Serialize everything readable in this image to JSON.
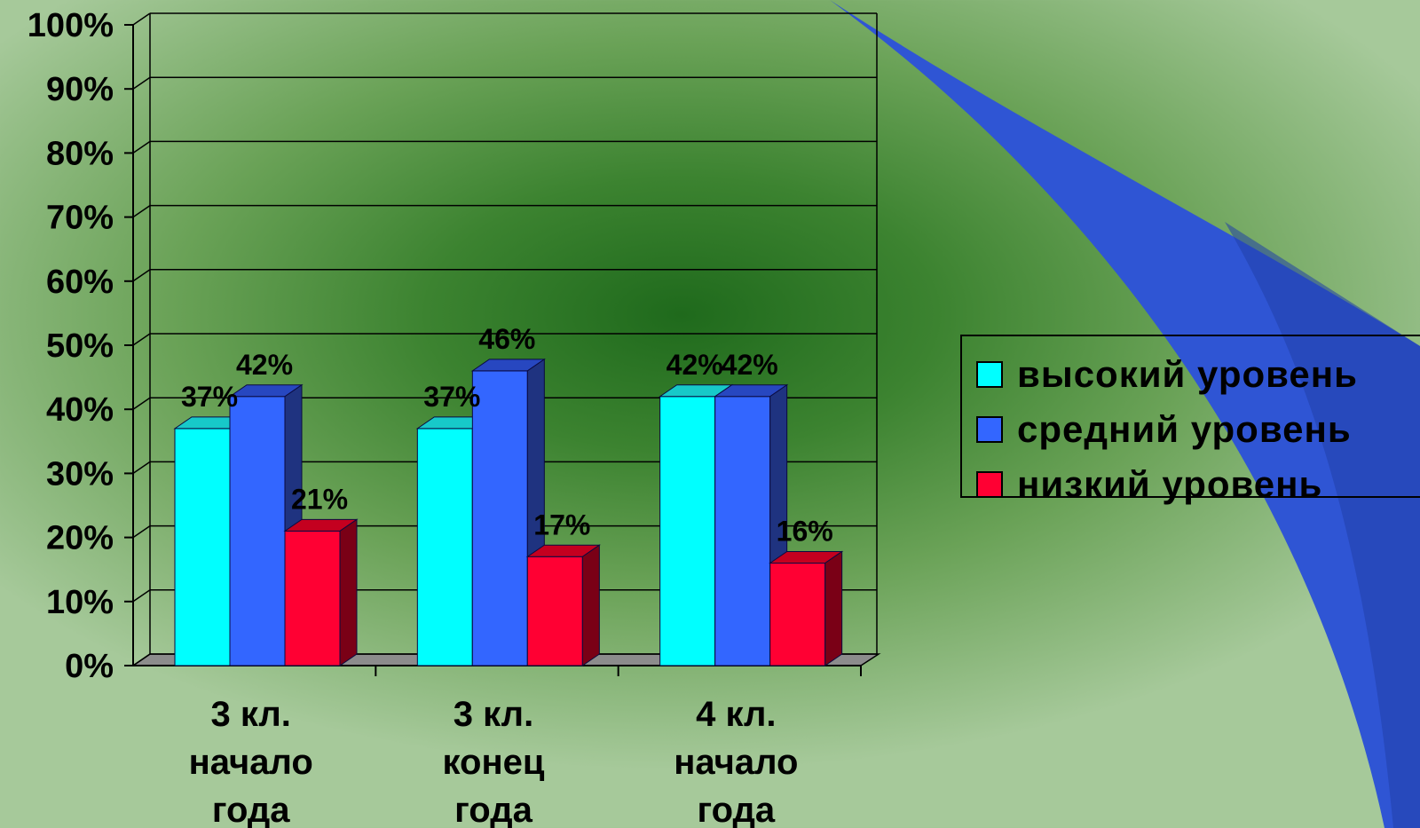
{
  "colors": {
    "high": "#00ffff",
    "high_top": "#17c9c9",
    "high_side": "#009c9c",
    "medium": "#3366ff",
    "medium_top": "#2747c0",
    "medium_side": "#1f3380",
    "low": "#ff0033",
    "low_top": "#c4001f",
    "low_side": "#7a0016",
    "ribbon": "#2f55d4"
  },
  "chart_data": {
    "type": "bar",
    "variant": "3d-clustered",
    "categories": [
      [
        "3 кл.",
        "начало",
        "года"
      ],
      [
        "3 кл.",
        "конец",
        "года"
      ],
      [
        "4 кл.",
        "начало",
        "года"
      ]
    ],
    "series": [
      {
        "name": "высокий уровень",
        "color": "#00ffff",
        "values": [
          37,
          37,
          42
        ],
        "labels": [
          "37%",
          "37%",
          "42%"
        ]
      },
      {
        "name": "средний уровень",
        "color": "#3366ff",
        "values": [
          42,
          46,
          42
        ],
        "labels": [
          "42%",
          "46%",
          "42%"
        ]
      },
      {
        "name": "низкий уровень",
        "color": "#ff0033",
        "values": [
          21,
          17,
          16
        ],
        "labels": [
          "21%",
          "17%",
          "16%"
        ]
      }
    ],
    "y_ticks": [
      "0%",
      "10%",
      "20%",
      "30%",
      "40%",
      "50%",
      "60%",
      "70%",
      "80%",
      "90%",
      "100%"
    ],
    "ylim": [
      0,
      100
    ],
    "grid": true,
    "legend_position": "right"
  },
  "legend": {
    "items": [
      {
        "label": "высокий уровень",
        "color": "#00ffff"
      },
      {
        "label": "средний уровень",
        "color": "#3366ff"
      },
      {
        "label": "низкий уровень",
        "color": "#ff0033"
      }
    ]
  }
}
